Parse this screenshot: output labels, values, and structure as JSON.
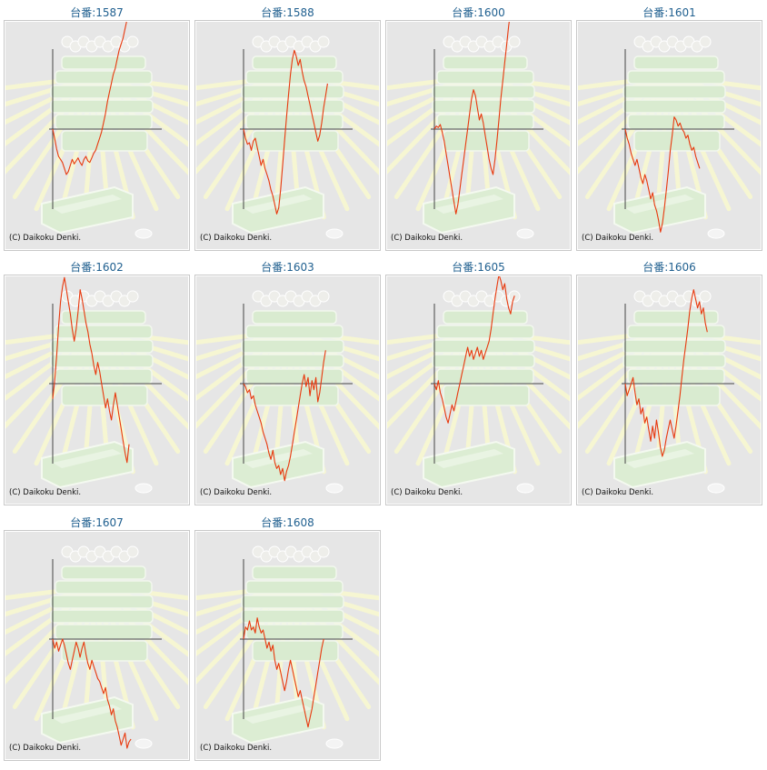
{
  "page": {
    "background": "#ffffff",
    "title_color": "#1f5f8f",
    "line_color": "#e8380d",
    "axis_color": "#444444",
    "plot_background": "#e6e6e6"
  },
  "icons": {
    "background_art": "pachislot-machine-sunburst-art"
  },
  "chart_data": [
    {
      "type": "line",
      "title": "台番:1587",
      "copyright": "(C) Daikoku Denki.",
      "grid": false,
      "y": [
        0,
        -300,
        -650,
        -900,
        -1000,
        -1100,
        -1300,
        -1500,
        -1400,
        -1200,
        -1000,
        -1150,
        -1050,
        -950,
        -1100,
        -1200,
        -1000,
        -900,
        -1050,
        -1100,
        -950,
        -800,
        -700,
        -500,
        -300,
        -100,
        200,
        500,
        900,
        1200,
        1500,
        1800,
        2000,
        2300,
        2600,
        2800,
        3000,
        3300,
        3600,
        3900,
        4200,
        4500,
        4800,
        5200
      ]
    },
    {
      "type": "line",
      "title": "台番:1588",
      "copyright": "(C) Daikoku Denki.",
      "grid": false,
      "y": [
        0,
        -300,
        -500,
        -450,
        -700,
        -400,
        -300,
        -600,
        -900,
        -1200,
        -1000,
        -1300,
        -1500,
        -1700,
        -2000,
        -2200,
        -2500,
        -2800,
        -2600,
        -2000,
        -1200,
        -400,
        400,
        1100,
        1800,
        2300,
        2600,
        2400,
        2100,
        2300,
        1900,
        1600,
        1400,
        1100,
        800,
        500,
        200,
        -100,
        -400,
        -200,
        200,
        700,
        1100,
        1500
      ]
    },
    {
      "type": "line",
      "title": "台番:1600",
      "copyright": "(C) Daikoku Denki.",
      "grid": false,
      "y": [
        0,
        100,
        50,
        150,
        -100,
        -400,
        -800,
        -1200,
        -1600,
        -2000,
        -2400,
        -2800,
        -2500,
        -2000,
        -1500,
        -1000,
        -500,
        0,
        500,
        1000,
        1300,
        1100,
        700,
        300,
        500,
        200,
        -200,
        -600,
        -1000,
        -1300,
        -1500,
        -1000,
        -400,
        300,
        1000,
        1600,
        2200,
        2800,
        3400,
        3900,
        4300,
        4700
      ]
    },
    {
      "type": "line",
      "title": "台番:1601",
      "copyright": "(C) Daikoku Denki.",
      "grid": false,
      "y": [
        0,
        -300,
        -500,
        -800,
        -1000,
        -1200,
        -1000,
        -1300,
        -1600,
        -1800,
        -1500,
        -1700,
        -2000,
        -2300,
        -2100,
        -2500,
        -2700,
        -3000,
        -3400,
        -3100,
        -2600,
        -2000,
        -1400,
        -700,
        -200,
        400,
        300,
        100,
        200,
        0,
        -100,
        -300,
        -200,
        -500,
        -700,
        -600,
        -900,
        -1100,
        -1300
      ]
    },
    {
      "type": "line",
      "title": "台番:1602",
      "copyright": "(C) Daikoku Denki.",
      "grid": false,
      "y": [
        -500,
        100,
        900,
        1900,
        2700,
        3200,
        3500,
        3100,
        2700,
        2300,
        1800,
        1400,
        1800,
        2400,
        3100,
        2800,
        2400,
        2000,
        1700,
        1300,
        1000,
        600,
        300,
        700,
        400,
        0,
        -400,
        -800,
        -500,
        -900,
        -1200,
        -700,
        -300,
        -700,
        -1100,
        -1500,
        -1900,
        -2300,
        -2600,
        -2000
      ]
    },
    {
      "type": "line",
      "title": "台番:1603",
      "copyright": "(C) Daikoku Denki.",
      "grid": false,
      "y": [
        0,
        -100,
        -300,
        -200,
        -500,
        -400,
        -700,
        -900,
        -1100,
        -1300,
        -1600,
        -1800,
        -2000,
        -2300,
        -2500,
        -2200,
        -2600,
        -2800,
        -2700,
        -3000,
        -2800,
        -3200,
        -2900,
        -2700,
        -2400,
        -2000,
        -1600,
        -1200,
        -800,
        -400,
        0,
        300,
        -100,
        200,
        -400,
        100,
        -200,
        200,
        -600,
        -300,
        200,
        700,
        1100
      ]
    },
    {
      "type": "line",
      "title": "台番:1605",
      "copyright": "(C) Daikoku Denki.",
      "grid": false,
      "y": [
        0,
        -200,
        100,
        -300,
        -500,
        -800,
        -1100,
        -1300,
        -1000,
        -700,
        -900,
        -600,
        -300,
        0,
        300,
        600,
        900,
        1200,
        900,
        1100,
        800,
        1000,
        1200,
        900,
        1100,
        800,
        1000,
        1200,
        1400,
        1800,
        2300,
        2800,
        3200,
        3600,
        3400,
        3100,
        3300,
        2800,
        2500,
        2300,
        2700,
        2900
      ]
    },
    {
      "type": "line",
      "title": "台番:1606",
      "copyright": "(C) Daikoku Denki.",
      "grid": false,
      "y": [
        0,
        -400,
        -200,
        0,
        200,
        -300,
        -700,
        -500,
        -1000,
        -800,
        -1300,
        -1100,
        -1500,
        -1900,
        -1400,
        -1800,
        -1200,
        -1600,
        -2100,
        -2400,
        -2200,
        -1800,
        -1500,
        -1200,
        -1500,
        -1800,
        -1400,
        -900,
        -400,
        200,
        800,
        1300,
        1800,
        2400,
        2800,
        3100,
        2800,
        2500,
        2700,
        2300,
        2500,
        2000,
        1700
      ]
    },
    {
      "type": "line",
      "title": "台番:1607",
      "copyright": "(C) Daikoku Denki.",
      "grid": false,
      "y": [
        0,
        -300,
        -100,
        -400,
        -200,
        0,
        -200,
        -500,
        -800,
        -1000,
        -700,
        -400,
        -100,
        -300,
        -600,
        -300,
        -100,
        -500,
        -800,
        -1000,
        -700,
        -900,
        -1100,
        -1300,
        -1400,
        -1600,
        -1800,
        -1600,
        -2000,
        -2200,
        -2500,
        -2300,
        -2700,
        -2900,
        -3200,
        -3500,
        -3300,
        -3100,
        -3600,
        -3400,
        -3300
      ]
    },
    {
      "type": "line",
      "title": "台番:1608",
      "copyright": "(C) Daikoku Denki.",
      "grid": false,
      "y": [
        0,
        400,
        300,
        600,
        300,
        400,
        200,
        700,
        400,
        200,
        300,
        0,
        -300,
        -100,
        -400,
        -200,
        -700,
        -1000,
        -800,
        -1100,
        -1400,
        -1700,
        -1400,
        -1000,
        -700,
        -1000,
        -1300,
        -1600,
        -1900,
        -1700,
        -2000,
        -2300,
        -2600,
        -2900,
        -2600,
        -2300,
        -1900,
        -1500,
        -1100,
        -700,
        -300,
        0
      ]
    }
  ]
}
